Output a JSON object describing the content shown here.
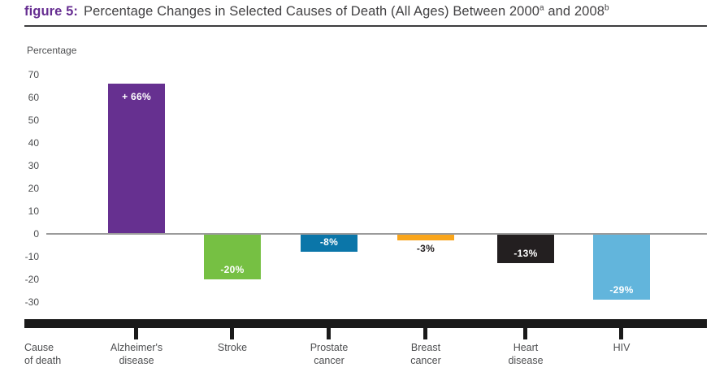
{
  "title": {
    "figure_label": "figure 5:",
    "main": "Percentage Changes in Selected Causes of Death (All Ages) Between 2000",
    "superscript_a": "a",
    "between": " and 2008",
    "superscript_b": "b"
  },
  "axis": {
    "y_label": "Percentage",
    "x_label_lines": [
      "Cause",
      "of death"
    ]
  },
  "colors": {
    "figure_label_purple": "#662D91",
    "title_text": "#414042",
    "axis_text": "#4D4E50",
    "zero_line": "#9B9B9B",
    "bottom_axis_bar": "#1A1A1A",
    "bar_label_light": "#FFFFFF",
    "bar_label_dark": "#231F20"
  },
  "chart_data": {
    "type": "bar",
    "title": "Percentage Changes in Selected Causes of Death (All Ages) Between 2000 and 2008",
    "xlabel": "Cause of death",
    "ylabel": "Percentage",
    "ylim": [
      -30,
      70
    ],
    "yticks": [
      70,
      60,
      50,
      40,
      30,
      20,
      10,
      0,
      -10,
      -20,
      -30
    ],
    "grid": false,
    "legend": false,
    "categories": [
      "Alzheimer's disease",
      "Stroke",
      "Prostate cancer",
      "Breast cancer",
      "Heart disease",
      "HIV"
    ],
    "category_label_lines": [
      [
        "Alzheimer's",
        "disease"
      ],
      [
        "Stroke"
      ],
      [
        "Prostate",
        "cancer"
      ],
      [
        "Breast",
        "cancer"
      ],
      [
        "Heart",
        "disease"
      ],
      [
        "HIV"
      ]
    ],
    "values": [
      66,
      -20,
      -8,
      -3,
      -13,
      -29
    ],
    "bar_labels": [
      "+ 66%",
      "-20%",
      "-8%",
      "-3%",
      "-13%",
      "-29%"
    ],
    "bar_colors": [
      "#663090",
      "#76C043",
      "#0B76A9",
      "#F9A51B",
      "#231F20",
      "#62B5DC"
    ]
  }
}
